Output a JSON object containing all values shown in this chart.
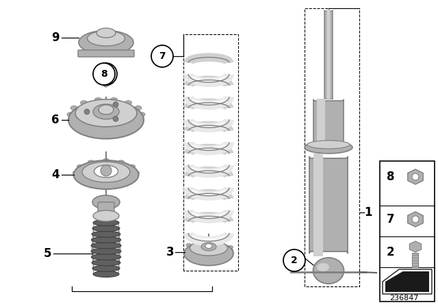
{
  "background_color": "#ffffff",
  "diagram_number": "236847",
  "gray_light": "#d0d0d0",
  "gray_mid": "#b0b0b0",
  "gray_dark": "#808080",
  "gray_darker": "#606060",
  "gray_body": "#c0c0c0",
  "coil_color": "#e8e8e8",
  "coil_stroke": "#c8c8c8",
  "black": "#000000",
  "white": "#ffffff"
}
